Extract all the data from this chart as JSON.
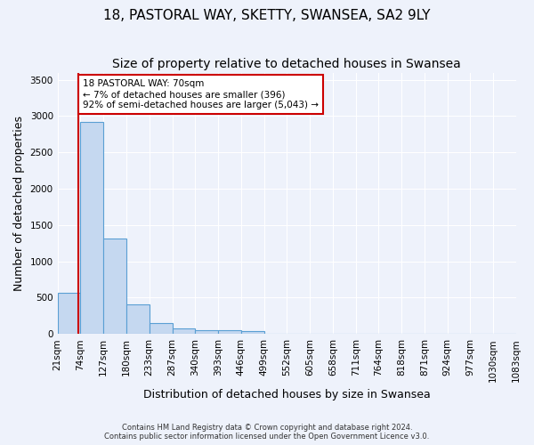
{
  "title": "18, PASTORAL WAY, SKETTY, SWANSEA, SA2 9LY",
  "subtitle": "Size of property relative to detached houses in Swansea",
  "xlabel": "Distribution of detached houses by size in Swansea",
  "ylabel": "Number of detached properties",
  "footer_line1": "Contains HM Land Registry data © Crown copyright and database right 2024.",
  "footer_line2": "Contains public sector information licensed under the Open Government Licence v3.0.",
  "bin_labels": [
    "21sqm",
    "74sqm",
    "127sqm",
    "180sqm",
    "233sqm",
    "287sqm",
    "340sqm",
    "393sqm",
    "446sqm",
    "499sqm",
    "552sqm",
    "605sqm",
    "658sqm",
    "711sqm",
    "764sqm",
    "818sqm",
    "871sqm",
    "924sqm",
    "977sqm",
    "1030sqm",
    "1083sqm"
  ],
  "bar_heights": [
    570,
    2920,
    1310,
    410,
    155,
    80,
    55,
    50,
    40,
    0,
    0,
    0,
    0,
    0,
    0,
    0,
    0,
    0,
    0,
    0
  ],
  "bar_color": "#c5d8f0",
  "bar_edge_color": "#5a9fd4",
  "annotation_line1": "18 PASTORAL WAY: 70sqm",
  "annotation_line2": "← 7% of detached houses are smaller (396)",
  "annotation_line3": "92% of semi-detached houses are larger (5,043) →",
  "vline_color": "#cc0000",
  "annotation_box_color": "#cc0000",
  "ylim": [
    0,
    3600
  ],
  "yticks": [
    0,
    500,
    1000,
    1500,
    2000,
    2500,
    3000,
    3500
  ],
  "background_color": "#eef2fb",
  "grid_color": "#ffffff",
  "title_fontsize": 11,
  "subtitle_fontsize": 10,
  "axis_label_fontsize": 9,
  "tick_fontsize": 7.5
}
